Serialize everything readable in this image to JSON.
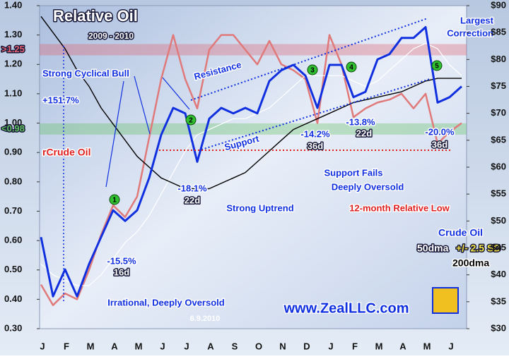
{
  "chart_data": {
    "type": "line",
    "title": "Relative Oil",
    "subtitle": "2009 - 2010",
    "categories": [
      "J",
      null,
      "F",
      null,
      "M",
      null,
      "A",
      null,
      "M",
      null,
      "J",
      null,
      "J",
      null,
      "A",
      null,
      "S",
      null,
      "O",
      null,
      "N",
      null,
      "D",
      null,
      "J",
      null,
      "F",
      null,
      "M",
      null,
      "A",
      null,
      "M",
      null,
      "J",
      null
    ],
    "ylim": [
      0.3,
      1.4
    ],
    "yticks": [
      {
        "value": 0.3,
        "label": "0.30"
      },
      {
        "value": 0.4,
        "label": "0.40"
      },
      {
        "value": 0.5,
        "label": "0.50"
      },
      {
        "value": 0.6,
        "label": "0.60"
      },
      {
        "value": 0.7,
        "label": "0.70"
      },
      {
        "value": 0.8,
        "label": "0.80"
      },
      {
        "value": 0.9,
        "label": "0.90"
      },
      {
        "value": 1.0,
        "label": "1.00"
      },
      {
        "value": 1.1,
        "label": "1.10"
      },
      {
        "value": 1.2,
        "label": "1.20"
      },
      {
        "value": 1.3,
        "label": "1.30"
      },
      {
        "value": 1.4,
        "label": "1.40"
      }
    ],
    "y2lim": [
      30,
      90
    ],
    "y2ticks": [
      {
        "value": 30,
        "label": "$30"
      },
      {
        "value": 35,
        "label": "$35"
      },
      {
        "value": 40,
        "label": "$40"
      },
      {
        "value": 45,
        "label": "$45"
      },
      {
        "value": 50,
        "label": "$50"
      },
      {
        "value": 55,
        "label": "$55"
      },
      {
        "value": 60,
        "label": "$60"
      },
      {
        "value": 65,
        "label": "$65"
      },
      {
        "value": 70,
        "label": "$70"
      },
      {
        "value": 75,
        "label": "$75"
      },
      {
        "value": 80,
        "label": "$80"
      },
      {
        "value": 85,
        "label": "$85"
      },
      {
        "value": 90,
        "label": "$90"
      }
    ],
    "grid": false,
    "bands": [
      {
        "value": 1.25,
        "label": ">1.25",
        "color": "#e06070"
      },
      {
        "value": 0.98,
        "label": "<0.98",
        "color": "#60c060"
      }
    ],
    "series": [
      {
        "name": "rCrude Oil",
        "color": "#e07a7a",
        "axis": "y",
        "values": [
          0.45,
          0.38,
          0.42,
          0.4,
          0.5,
          0.62,
          0.72,
          0.68,
          0.75,
          0.95,
          1.15,
          1.3,
          1.15,
          1.05,
          1.25,
          1.3,
          1.3,
          1.25,
          1.2,
          1.28,
          1.2,
          1.18,
          1.15,
          1.0,
          1.3,
          1.2,
          1.02,
          1.05,
          1.07,
          1.08,
          1.1,
          1.05,
          1.1,
          0.93,
          0.97,
          1.0
        ]
      },
      {
        "name": "50dma",
        "color": "#ffffff",
        "axis": "y2",
        "values": [
          42,
          40,
          39,
          38,
          38,
          40,
          43,
          46,
          48,
          51,
          55,
          59,
          63,
          66,
          67,
          68,
          69,
          69,
          70,
          71,
          73,
          75,
          77,
          77,
          77,
          77,
          76,
          75,
          76,
          78,
          80,
          82,
          83,
          82,
          79,
          77
        ]
      },
      {
        "name": "200dma",
        "color": "#000000",
        "axis": "y2",
        "values": [
          88,
          85,
          82,
          78,
          75,
          71,
          68,
          65,
          62,
          60,
          58,
          57,
          56,
          56,
          56,
          57,
          58,
          59,
          61,
          63,
          65,
          67,
          68,
          69,
          70,
          71,
          72,
          72.5,
          73,
          73.5,
          74,
          75,
          76,
          76.5,
          76.5,
          76.5
        ]
      },
      {
        "name": "Crude Oil",
        "color": "#1030e0",
        "axis": "y2",
        "values": [
          47,
          36,
          41,
          36,
          42,
          47,
          52,
          50,
          52,
          58,
          66,
          71,
          70,
          61,
          69,
          71,
          70,
          71,
          70,
          76,
          78,
          79,
          77,
          71,
          79,
          79,
          73,
          74,
          80,
          81,
          84,
          84,
          86,
          72,
          73,
          75
        ]
      }
    ],
    "annotations": [
      "Strong Cyclical Bull",
      "+151.7%",
      "Resistance",
      "Support",
      "Largest",
      "Correction",
      "-18.1%",
      "22d",
      "-15.5%",
      "16d",
      "-14.2%",
      "36d",
      "-13.8%",
      "22d",
      "-20.0%",
      "36d",
      "Strong Uptrend",
      "Support Fails",
      "Deeply Oversold",
      "12-month Relative Low",
      "Irrational, Deeply Oversold",
      "www.ZealLLC.com",
      "6.9.2010",
      "1",
      "2",
      "3",
      "4",
      "5",
      "+/- 2.5 SD"
    ]
  }
}
